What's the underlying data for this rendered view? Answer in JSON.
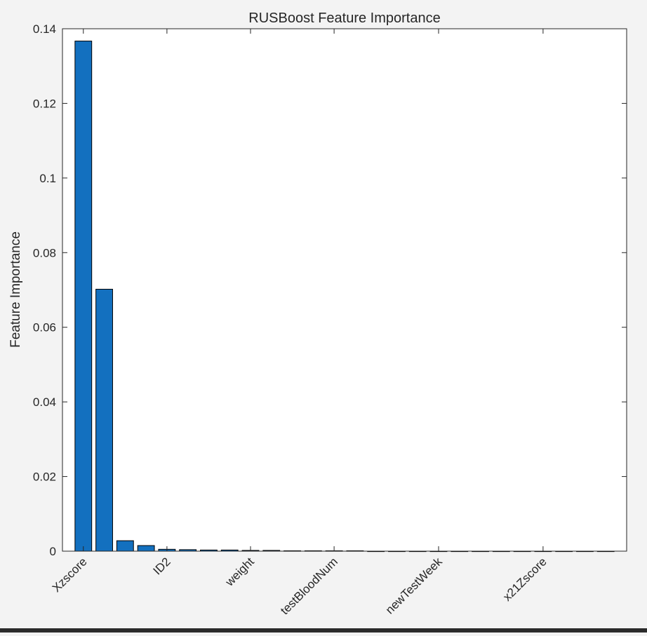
{
  "chart_data": {
    "type": "bar",
    "title": "RUSBoost Feature Importance",
    "xlabel": "",
    "ylabel": "Feature Importance",
    "ylim": [
      0,
      0.14
    ],
    "yticks": [
      "0",
      "0.02",
      "0.04",
      "0.06",
      "0.08",
      "0.1",
      "0.12",
      "0.14"
    ],
    "xlim": [
      0,
      27
    ],
    "xtick_positions": [
      1,
      5,
      9,
      13,
      18,
      23
    ],
    "xtick_labels": [
      "Xzscore",
      "ID2",
      "weight",
      "testBloodNum",
      "newTestWeek",
      "x21Zscore"
    ],
    "categories": [
      1,
      2,
      3,
      4,
      5,
      6,
      7,
      8,
      9,
      10,
      11,
      12,
      13,
      14,
      15,
      16,
      17,
      18,
      19,
      20,
      21,
      22,
      23,
      24,
      25,
      26
    ],
    "values": [
      0.1367,
      0.0702,
      0.0028,
      0.0015,
      0.0005,
      0.0004,
      0.0003,
      0.0003,
      0.0002,
      0.0002,
      0.0001,
      0.0001,
      0.0001,
      0.0001,
      0.0,
      0.0,
      0.0,
      0.0,
      0.0,
      0.0,
      0.0,
      0.0,
      0.0,
      0.0,
      0.0,
      0.0
    ],
    "bar_color": "#1370bf",
    "grid": false,
    "legend": "none"
  }
}
